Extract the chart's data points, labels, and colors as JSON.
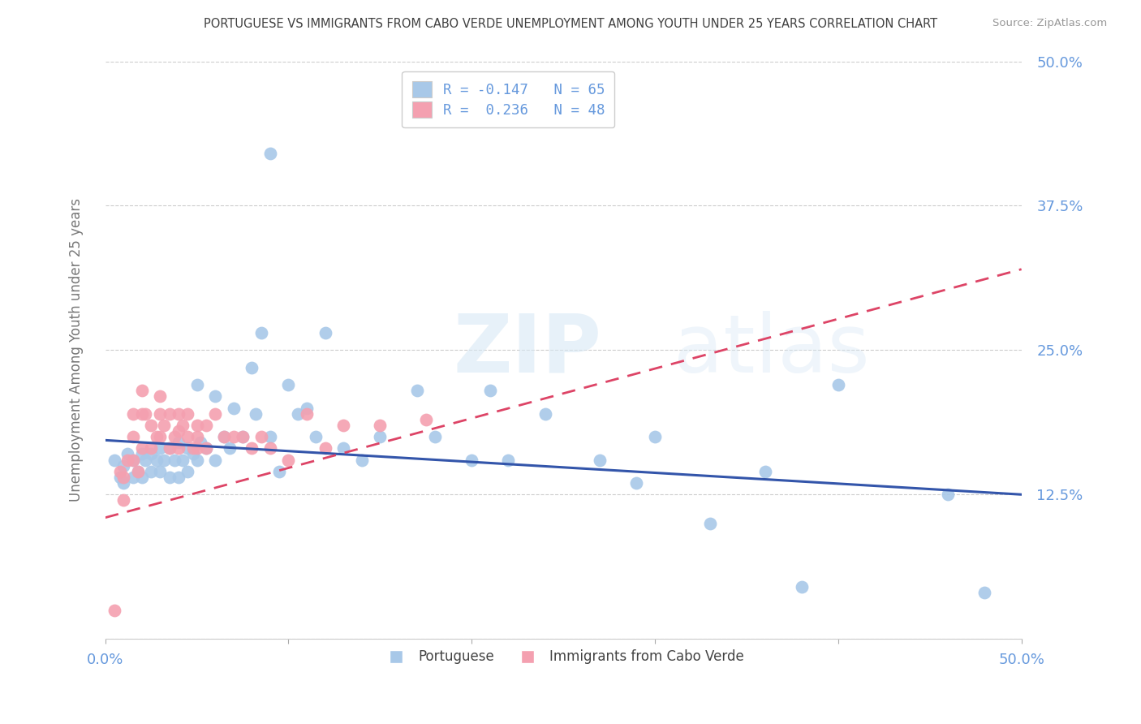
{
  "title": "PORTUGUESE VS IMMIGRANTS FROM CABO VERDE UNEMPLOYMENT AMONG YOUTH UNDER 25 YEARS CORRELATION CHART",
  "source": "Source: ZipAtlas.com",
  "ylabel": "Unemployment Among Youth under 25 years",
  "xlim": [
    0.0,
    0.5
  ],
  "ylim": [
    0.0,
    0.5
  ],
  "yticks": [
    0.0,
    0.125,
    0.25,
    0.375,
    0.5
  ],
  "ytick_labels": [
    "",
    "12.5%",
    "25.0%",
    "37.5%",
    "50.0%"
  ],
  "blue_color": "#a8c8e8",
  "pink_color": "#f4a0b0",
  "blue_line_color": "#3355aa",
  "pink_line_color": "#dd4466",
  "title_color": "#404040",
  "axis_label_color": "#6699dd",
  "ylabel_color": "#777777",
  "watermark_zip": "ZIP",
  "watermark_atlas": "atlas",
  "blue_label": "Portuguese",
  "pink_label": "Immigrants from Cabo Verde",
  "legend_blue_text": "R = -0.147   N = 65",
  "legend_pink_text": "R =  0.236   N = 48",
  "blue_line_y0": 0.172,
  "blue_line_y1": 0.125,
  "pink_line_y0": 0.105,
  "pink_line_y1": 0.32,
  "blue_x": [
    0.005,
    0.008,
    0.01,
    0.01,
    0.012,
    0.015,
    0.015,
    0.018,
    0.02,
    0.02,
    0.022,
    0.025,
    0.025,
    0.028,
    0.03,
    0.03,
    0.032,
    0.035,
    0.035,
    0.038,
    0.04,
    0.04,
    0.042,
    0.045,
    0.045,
    0.048,
    0.05,
    0.05,
    0.052,
    0.055,
    0.06,
    0.06,
    0.065,
    0.068,
    0.07,
    0.075,
    0.08,
    0.082,
    0.085,
    0.09,
    0.09,
    0.095,
    0.1,
    0.105,
    0.11,
    0.115,
    0.12,
    0.13,
    0.14,
    0.15,
    0.17,
    0.18,
    0.2,
    0.21,
    0.22,
    0.24,
    0.27,
    0.29,
    0.3,
    0.33,
    0.36,
    0.38,
    0.4,
    0.46,
    0.48
  ],
  "blue_y": [
    0.155,
    0.14,
    0.15,
    0.135,
    0.16,
    0.155,
    0.14,
    0.145,
    0.16,
    0.14,
    0.155,
    0.16,
    0.145,
    0.155,
    0.165,
    0.145,
    0.155,
    0.165,
    0.14,
    0.155,
    0.17,
    0.14,
    0.155,
    0.165,
    0.145,
    0.16,
    0.22,
    0.155,
    0.17,
    0.165,
    0.21,
    0.155,
    0.175,
    0.165,
    0.2,
    0.175,
    0.235,
    0.195,
    0.265,
    0.42,
    0.175,
    0.145,
    0.22,
    0.195,
    0.2,
    0.175,
    0.265,
    0.165,
    0.155,
    0.175,
    0.215,
    0.175,
    0.155,
    0.215,
    0.155,
    0.195,
    0.155,
    0.135,
    0.175,
    0.1,
    0.145,
    0.045,
    0.22,
    0.125,
    0.04
  ],
  "pink_x": [
    0.005,
    0.008,
    0.01,
    0.01,
    0.012,
    0.015,
    0.015,
    0.015,
    0.018,
    0.02,
    0.02,
    0.02,
    0.022,
    0.025,
    0.025,
    0.028,
    0.03,
    0.03,
    0.03,
    0.032,
    0.035,
    0.035,
    0.038,
    0.04,
    0.04,
    0.04,
    0.042,
    0.045,
    0.045,
    0.048,
    0.05,
    0.05,
    0.05,
    0.055,
    0.055,
    0.06,
    0.065,
    0.07,
    0.075,
    0.08,
    0.085,
    0.09,
    0.1,
    0.11,
    0.12,
    0.13,
    0.15,
    0.175
  ],
  "pink_y": [
    0.025,
    0.145,
    0.14,
    0.12,
    0.155,
    0.195,
    0.175,
    0.155,
    0.145,
    0.215,
    0.195,
    0.165,
    0.195,
    0.185,
    0.165,
    0.175,
    0.21,
    0.195,
    0.175,
    0.185,
    0.195,
    0.165,
    0.175,
    0.195,
    0.18,
    0.165,
    0.185,
    0.195,
    0.175,
    0.165,
    0.185,
    0.175,
    0.165,
    0.185,
    0.165,
    0.195,
    0.175,
    0.175,
    0.175,
    0.165,
    0.175,
    0.165,
    0.155,
    0.195,
    0.165,
    0.185,
    0.185,
    0.19
  ]
}
